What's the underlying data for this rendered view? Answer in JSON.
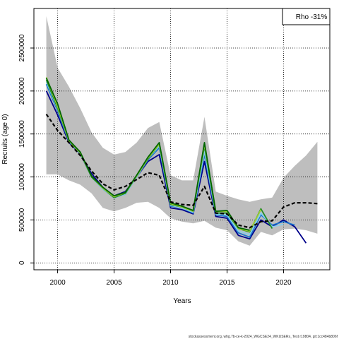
{
  "chart_data": {
    "type": "line",
    "xlabel": "Years",
    "ylabel": "Recruits (age 0)",
    "xlim": [
      1997.9,
      2024.1
    ],
    "ylim": [
      -80000,
      2960000
    ],
    "x_ticks": [
      2000,
      2005,
      2010,
      2015,
      2020
    ],
    "y_ticks": [
      0,
      500000,
      1000000,
      1500000,
      2000000,
      2500000
    ],
    "grid": true,
    "legend": {
      "text": "Rho -31%",
      "placement": "top-right"
    },
    "footer": "stockassessment.org, whg.7b-ce-k-2024_WGCSE24_WKUSERs_Test r19804, git:1cc484b806f",
    "band": {
      "x": [
        1999,
        2000,
        2001,
        2002,
        2003,
        2004,
        2005,
        2006,
        2007,
        2008,
        2009,
        2010,
        2011,
        2012,
        2013,
        2014,
        2015,
        2016,
        2017,
        2018,
        2019,
        2020,
        2021,
        2022,
        2023
      ],
      "upper": [
        2870000,
        2270000,
        2050000,
        1800000,
        1520000,
        1340000,
        1260000,
        1290000,
        1400000,
        1570000,
        1640000,
        1020000,
        960000,
        960000,
        1700000,
        830000,
        780000,
        740000,
        710000,
        740000,
        760000,
        990000,
        1130000,
        1250000,
        1410000
      ],
      "lower": [
        1030000,
        1030000,
        960000,
        910000,
        810000,
        640000,
        600000,
        640000,
        700000,
        710000,
        640000,
        520000,
        480000,
        460000,
        490000,
        410000,
        380000,
        250000,
        200000,
        360000,
        320000,
        390000,
        400000,
        380000,
        340000
      ],
      "color": "#bebebe"
    },
    "series": [
      {
        "color": "#00008b",
        "x": [
          1999,
          2000,
          2001,
          2002,
          2003,
          2004,
          2005,
          2006,
          2007,
          2008,
          2009,
          2010,
          2011,
          2012,
          2013,
          2014,
          2015,
          2016,
          2017,
          2018,
          2019,
          2020,
          2021,
          2022
        ],
        "values": [
          2000000,
          1720000,
          1400000,
          1270000,
          1040000,
          880000,
          780000,
          830000,
          1000000,
          1180000,
          1260000,
          640000,
          620000,
          570000,
          1180000,
          540000,
          520000,
          320000,
          280000,
          500000,
          420000,
          500000,
          420000,
          230000
        ]
      },
      {
        "color": "#1874cd",
        "x": [
          1999,
          2000,
          2001,
          2002,
          2003,
          2004,
          2005,
          2006,
          2007,
          2008,
          2009,
          2010,
          2011,
          2012,
          2013,
          2014,
          2015,
          2016,
          2017,
          2018,
          2019,
          2020,
          2021
        ],
        "values": [
          2080000,
          1770000,
          1410000,
          1270000,
          1000000,
          860000,
          760000,
          800000,
          1000000,
          1200000,
          1340000,
          660000,
          640000,
          580000,
          1260000,
          560000,
          540000,
          350000,
          300000,
          560000,
          440000,
          480000,
          440000
        ]
      },
      {
        "color": "#87ceeb",
        "x": [
          1999,
          2000,
          2001,
          2002,
          2003,
          2004,
          2005,
          2006,
          2007,
          2008,
          2009,
          2010,
          2011,
          2012,
          2013,
          2014,
          2015,
          2016,
          2017,
          2018,
          2019,
          2020
        ],
        "values": [
          2110000,
          1790000,
          1420000,
          1280000,
          1000000,
          860000,
          760000,
          800000,
          1000000,
          1210000,
          1360000,
          670000,
          640000,
          590000,
          1300000,
          570000,
          560000,
          370000,
          330000,
          580000,
          420000,
          450000
        ]
      },
      {
        "color": "#228b22",
        "x": [
          1999,
          2000,
          2001,
          2002,
          2003,
          2004,
          2005,
          2006,
          2007,
          2008,
          2009,
          2010,
          2011,
          2012,
          2013,
          2014,
          2015,
          2016,
          2017,
          2018,
          2019
        ],
        "values": [
          2130000,
          1800000,
          1420000,
          1280000,
          1000000,
          870000,
          760000,
          810000,
          1010000,
          1210000,
          1380000,
          680000,
          650000,
          600000,
          1360000,
          580000,
          580000,
          400000,
          360000,
          630000,
          400000
        ]
      },
      {
        "color": "#9acd32",
        "x": [
          1999,
          2000,
          2001,
          2002,
          2003,
          2004,
          2005,
          2006,
          2007,
          2008,
          2009,
          2010,
          2011,
          2012,
          2013,
          2014,
          2015,
          2016,
          2017,
          2018
        ],
        "values": [
          2160000,
          1820000,
          1420000,
          1280000,
          1010000,
          870000,
          770000,
          820000,
          1010000,
          1220000,
          1380000,
          690000,
          650000,
          600000,
          1380000,
          600000,
          600000,
          400000,
          370000,
          620000
        ]
      },
      {
        "color": "#006400",
        "x": [
          1999,
          2000,
          2001,
          2002,
          2003,
          2004,
          2005,
          2006,
          2007,
          2008,
          2009,
          2010,
          2011,
          2012,
          2013,
          2014,
          2015,
          2016,
          2017
        ],
        "values": [
          2150000,
          1850000,
          1430000,
          1290000,
          1010000,
          880000,
          780000,
          820000,
          1020000,
          1230000,
          1400000,
          700000,
          660000,
          610000,
          1400000,
          600000,
          610000,
          410000,
          380000
        ]
      },
      {
        "color": "#000000",
        "dashed": true,
        "x": [
          1999,
          2000,
          2001,
          2002,
          2003,
          2004,
          2005,
          2006,
          2007,
          2008,
          2009,
          2010,
          2011,
          2012,
          2013,
          2014,
          2015,
          2016,
          2017,
          2018,
          2019,
          2020,
          2021,
          2022,
          2023
        ],
        "values": [
          1730000,
          1540000,
          1400000,
          1250000,
          1070000,
          920000,
          850000,
          890000,
          970000,
          1050000,
          1020000,
          710000,
          680000,
          670000,
          890000,
          580000,
          570000,
          440000,
          410000,
          480000,
          490000,
          650000,
          700000,
          700000,
          690000
        ]
      }
    ]
  }
}
